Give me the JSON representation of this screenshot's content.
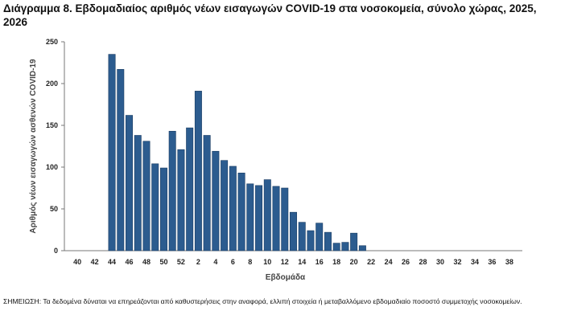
{
  "title": "Διάγραμμα 8. Εβδομαδιαίος αριθμός νέων εισαγωγών COVID-19 στα νοσοκομεία, σύνολο χώρας, 2025, 2026",
  "note": "ΣΗΜΕΙΩΣΗ: Τα δεδομένα δύναται να επηρεάζονται από καθυστερήσεις στην αναφορά, ελλιπή στοιχεία ή μεταβαλλόμενο εβδομαδιαίο ποσοστό συμμετοχής νοσοκομείων.",
  "chart_data": {
    "type": "bar",
    "title": "Διάγραμμα 8. Εβδομαδιαίος αριθμός νέων εισαγωγών COVID-19 στα νοσοκομεία, σύνολο χώρας, 2025, 2026",
    "xlabel": "Εβδομάδα",
    "ylabel": "Αριθμός νέων εισαγωγών ασθενών COVID-19",
    "ylim": [
      0,
      250
    ],
    "yticks": [
      0,
      50,
      100,
      150,
      200,
      250
    ],
    "categories": [
      "39",
      "40",
      "41",
      "42",
      "43",
      "44",
      "45",
      "46",
      "47",
      "48",
      "49",
      "50",
      "51",
      "52",
      "1",
      "2",
      "3",
      "4",
      "5",
      "6",
      "7",
      "8",
      "9",
      "10",
      "11",
      "12",
      "13",
      "14",
      "15",
      "16",
      "17",
      "18",
      "19",
      "20",
      "21",
      "22",
      "23",
      "24",
      "25",
      "26",
      "27",
      "28",
      "29",
      "30",
      "31",
      "32",
      "33",
      "34",
      "35",
      "36",
      "37",
      "38",
      "39"
    ],
    "tick_labels": [
      "40",
      "42",
      "44",
      "46",
      "48",
      "50",
      "52",
      "2",
      "4",
      "6",
      "8",
      "10",
      "12",
      "14",
      "16",
      "18",
      "20",
      "22",
      "24",
      "26",
      "28",
      "30",
      "32",
      "34",
      "36",
      "38"
    ],
    "values": [
      0,
      0,
      0,
      0,
      0,
      235,
      217,
      162,
      138,
      131,
      104,
      99,
      143,
      121,
      147,
      191,
      138,
      119,
      108,
      101,
      93,
      80,
      78,
      85,
      77,
      75,
      46,
      34,
      24,
      33,
      22,
      9,
      10,
      21,
      6,
      0,
      0,
      0,
      0,
      0,
      0,
      0,
      0,
      0,
      0,
      0,
      0,
      0,
      0,
      0,
      0,
      0,
      0
    ],
    "bar_color": "#2c5c8f",
    "grid": false,
    "legend": "none"
  }
}
